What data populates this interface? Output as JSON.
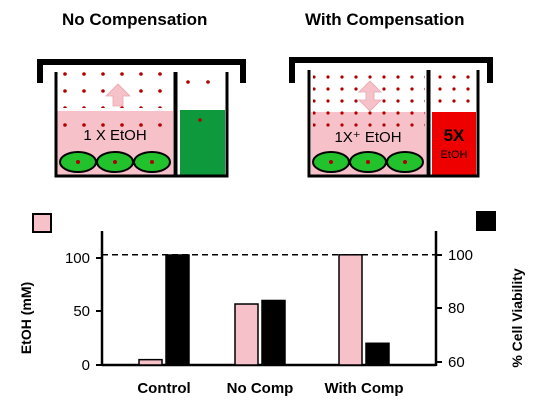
{
  "panels": {
    "left": {
      "title": "No Compensation",
      "chamber_label": "1 X EtOH"
    },
    "right": {
      "title": "With Compensation",
      "chamber_label": "1X⁺ EtOH",
      "reservoir_label_big": "5X",
      "reservoir_label_small": "EtOH"
    }
  },
  "colors": {
    "pink": "#f6c1c8",
    "black": "#000000",
    "green_reservoir": "#0e9a3c",
    "red_reservoir": "#ee0000",
    "cell_green": "#22c22c",
    "dot": "#b00000"
  },
  "chart_data": {
    "type": "bar",
    "categories": [
      "Control",
      "No Comp",
      "With Comp"
    ],
    "series": [
      {
        "axis": "left",
        "color": "#f6c1c8",
        "values": [
          5,
          57,
          103
        ]
      },
      {
        "axis": "right",
        "color": "#000000",
        "values": [
          100,
          83,
          67
        ]
      }
    ],
    "ylabel_left": "EtOH (mM)",
    "ylabel_right": "% Cell Viability",
    "yticks_left": [
      "0",
      "50",
      "100"
    ],
    "yticks_right": [
      "60",
      "80",
      "100"
    ],
    "ylim_left": [
      0,
      100
    ],
    "ylim_right": [
      60,
      100
    ],
    "reference_line": {
      "axis": "left",
      "value": 103,
      "style": "dashed"
    }
  }
}
